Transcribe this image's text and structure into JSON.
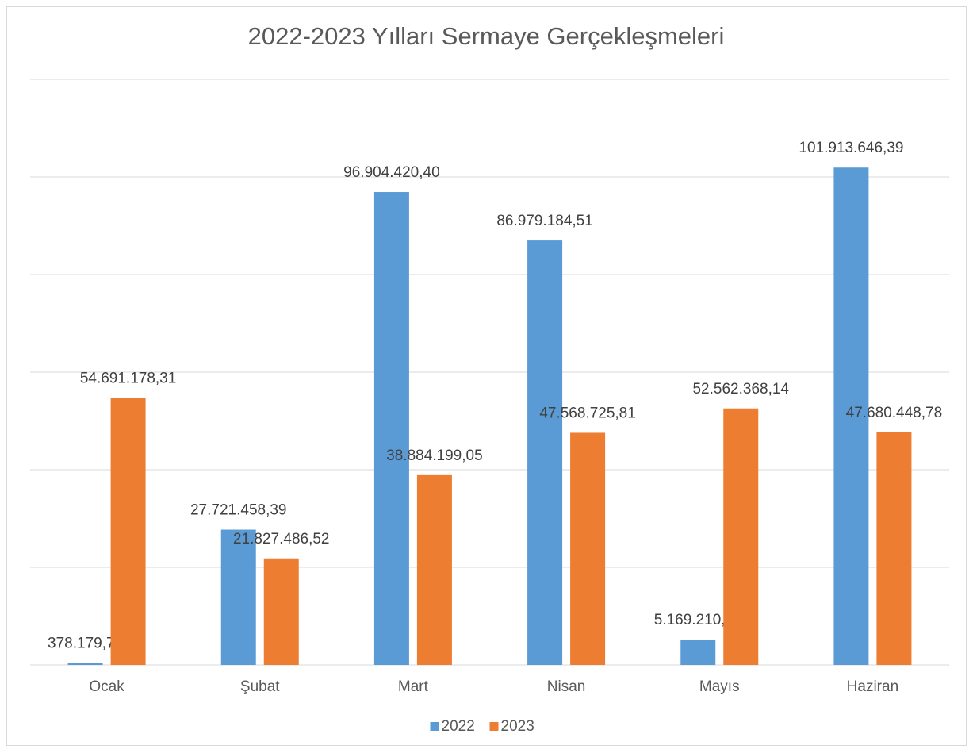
{
  "chart_data": {
    "type": "bar",
    "title": "2022-2023 Yılları Sermaye Gerçekleşmeleri",
    "categories": [
      "Ocak",
      "Şubat",
      "Mart",
      "Nisan",
      "Mayıs",
      "Haziran"
    ],
    "series": [
      {
        "name": "2022",
        "color": "#5b9bd5",
        "values": [
          378179.74,
          27721458.39,
          96904420.4,
          86979184.51,
          5169210.4,
          101913646.39
        ],
        "value_labels": [
          "378.179,74",
          "27.721.458,39",
          "96.904.420,40",
          "86.979.184,51",
          "5.169.210,40",
          "101.913.646,39"
        ]
      },
      {
        "name": "2023",
        "color": "#ed7d31",
        "values": [
          54691178.31,
          21827486.52,
          38884199.05,
          47568725.81,
          52562368.14,
          47680448.78
        ],
        "value_labels": [
          "54.691.178,31",
          "21.827.486,52",
          "38.884.199,05",
          "47.568.725,81",
          "52.562.368,14",
          "47.680.448,78"
        ]
      }
    ],
    "ylim": [
      0,
      120000000
    ],
    "yticks": [
      0,
      20000000,
      40000000,
      60000000,
      80000000,
      100000000,
      120000000
    ],
    "grid": true,
    "legend": "bottom"
  }
}
